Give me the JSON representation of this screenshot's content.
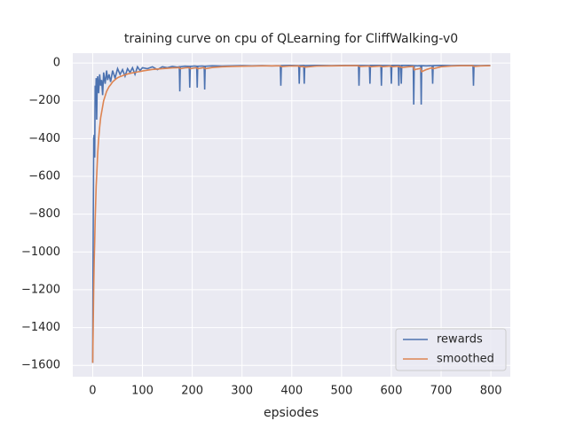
{
  "chart_data": {
    "type": "line",
    "title": "training curve on cpu of QLearning for CliffWalking-v0",
    "x_label": "epsiodes",
    "x": [
      0,
      1,
      2,
      3,
      4,
      5,
      6,
      7,
      8,
      9,
      10,
      12,
      14,
      16,
      18,
      20,
      22,
      25,
      28,
      30,
      33,
      36,
      40,
      45,
      50,
      55,
      60,
      65,
      70,
      75,
      80,
      85,
      90,
      95,
      100,
      110,
      120,
      130,
      140,
      150,
      160,
      170,
      174,
      175,
      176,
      185,
      194,
      195,
      196,
      205,
      209,
      210,
      211,
      220,
      224,
      225,
      226,
      240,
      260,
      280,
      300,
      320,
      340,
      360,
      377,
      378,
      379,
      395,
      414,
      415,
      416,
      424,
      425,
      426,
      450,
      480,
      510,
      534,
      535,
      536,
      556,
      557,
      558,
      579,
      580,
      581,
      599,
      600,
      601,
      614,
      615,
      616,
      619,
      620,
      621,
      635,
      644,
      645,
      646,
      652,
      659,
      660,
      661,
      670,
      682,
      683,
      684,
      700,
      720,
      740,
      764,
      765,
      766,
      780,
      799
    ],
    "series": [
      {
        "name": "rewards",
        "color": "#4c72b0",
        "values": [
          -1587,
          -900,
          -400,
          -380,
          -500,
          -120,
          -200,
          -80,
          -300,
          -130,
          -70,
          -160,
          -60,
          -120,
          -90,
          -170,
          -50,
          -110,
          -40,
          -90,
          -60,
          -100,
          -40,
          -80,
          -30,
          -60,
          -35,
          -70,
          -30,
          -50,
          -25,
          -60,
          -20,
          -40,
          -25,
          -30,
          -20,
          -35,
          -20,
          -25,
          -18,
          -22,
          -20,
          -150,
          -20,
          -17,
          -18,
          -130,
          -18,
          -16,
          -17,
          -130,
          -17,
          -16,
          -17,
          -140,
          -17,
          -15,
          -16,
          -15,
          -14,
          -15,
          -14,
          -15,
          -14,
          -120,
          -14,
          -13,
          -14,
          -110,
          -14,
          -13,
          -110,
          -14,
          -13,
          -14,
          -13,
          -13,
          -120,
          -13,
          -14,
          -110,
          -13,
          -13,
          -120,
          -13,
          -14,
          -110,
          -13,
          -13,
          -120,
          -13,
          -14,
          -110,
          -13,
          -13,
          -14,
          -220,
          -14,
          -15,
          -14,
          -220,
          -14,
          -15,
          -14,
          -110,
          -14,
          -13,
          -14,
          -13,
          -13,
          -120,
          -13,
          -14,
          -13
        ]
      },
      {
        "name": "smoothed",
        "color": "#dd8452",
        "values": [
          -1587,
          -1400,
          -1200,
          -1050,
          -950,
          -830,
          -740,
          -650,
          -600,
          -540,
          -480,
          -400,
          -340,
          -290,
          -260,
          -230,
          -200,
          -175,
          -150,
          -140,
          -125,
          -115,
          -100,
          -88,
          -78,
          -72,
          -67,
          -63,
          -58,
          -55,
          -52,
          -50,
          -47,
          -45,
          -42,
          -38,
          -34,
          -32,
          -30,
          -28,
          -26,
          -25,
          -24,
          -28,
          -30,
          -26,
          -24,
          -27,
          -30,
          -26,
          -25,
          -28,
          -30,
          -26,
          -24,
          -28,
          -30,
          -24,
          -20,
          -18,
          -17,
          -16,
          -15,
          -15,
          -15,
          -17,
          -19,
          -16,
          -15,
          -17,
          -19,
          -18,
          -20,
          -22,
          -16,
          -15,
          -14,
          -14,
          -16,
          -18,
          -16,
          -18,
          -20,
          -16,
          -18,
          -20,
          -16,
          -18,
          -20,
          -17,
          -19,
          -21,
          -20,
          -22,
          -24,
          -20,
          -18,
          -28,
          -36,
          -32,
          -28,
          -38,
          -46,
          -35,
          -25,
          -28,
          -30,
          -20,
          -16,
          -14,
          -14,
          -16,
          -18,
          -15,
          -14
        ]
      }
    ],
    "xlim": [
      -40,
      839
    ],
    "ylim": [
      -1660,
      52
    ],
    "xticks": [
      0,
      100,
      200,
      300,
      400,
      500,
      600,
      700,
      800
    ],
    "yticks": [
      0,
      {
        "value": -200,
        "label": "−200"
      },
      {
        "value": -400,
        "label": "−400"
      },
      {
        "value": -600,
        "label": "−600"
      },
      {
        "value": -800,
        "label": "−800"
      },
      {
        "value": -1000,
        "label": "−1000"
      },
      {
        "value": -1200,
        "label": "−1200"
      },
      {
        "value": -1400,
        "label": "−1400"
      },
      {
        "value": -1600,
        "label": "−1600"
      }
    ],
    "grid": true,
    "legend": "lower right"
  }
}
